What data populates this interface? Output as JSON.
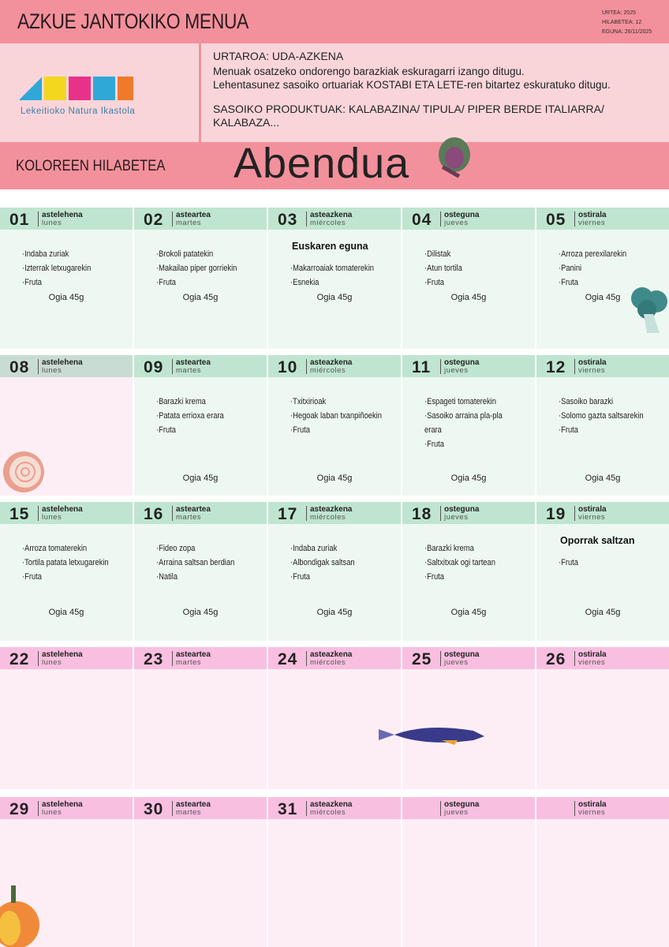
{
  "header": {
    "title": "AZKUE JANTOKIKO MENUA",
    "meta": [
      "URTEA: 2025",
      "HILABETEA: 12",
      "EGUNA: 26/11/2025"
    ]
  },
  "logo": {
    "text": "AZKUE",
    "subtitle": "Lekeitioko Natura Ikastola",
    "colors": [
      "#2fa8d8",
      "#f3d61e",
      "#e8328a",
      "#2fa8d8",
      "#f07a2b"
    ]
  },
  "info": {
    "season": "URTAROA:  UDA-AZKENA",
    "line1": "Menuak osatzeko ondorengo barazkiak eskuragarri izango ditugu.",
    "line2": "Lehentasunez sasoiko ortuariak KOSTABI ETA LETE-ren bitartez eskuratuko ditugu.",
    "products1": "SASOIKO PRODUKTUAK: KALABAZINA/ TIPULA/ PIPER BERDE ITALIARRA/",
    "products2": "KALABAZA..."
  },
  "banner": {
    "left": "KOLOREEN HILABETEA",
    "month": "Abendua"
  },
  "colors": {
    "pink": "#f2919c",
    "green_header": "#bfe5d0",
    "green_body": "#eef8f2",
    "pink_header": "#f9bfe0",
    "pink_body": "#fdeef6"
  },
  "weeks": [
    [
      {
        "n": "01",
        "eu": "astelehena",
        "es": "lunes",
        "items": [
          "·Indaba zuriak",
          "·Izterrak letxugarekin",
          "·Fruta"
        ],
        "ogia": "Ogia 45g"
      },
      {
        "n": "02",
        "eu": "asteartea",
        "es": "martes",
        "items": [
          "·Brokoli patatekin",
          "·Makailao piper gorriekin",
          "·Fruta"
        ],
        "ogia": "Ogia 45g"
      },
      {
        "n": "03",
        "eu": "asteazkena",
        "es": "miércoles",
        "special": "Euskaren eguna",
        "items": [
          "·Makarroaiak tomaterekin",
          "·Esnekia"
        ],
        "ogia": "Ogia 45g"
      },
      {
        "n": "04",
        "eu": "osteguna",
        "es": "jueves",
        "items": [
          "·Dilistak",
          "·Atun tortila",
          "·Fruta"
        ],
        "ogia": "Ogia 45g"
      },
      {
        "n": "05",
        "eu": "ostirala",
        "es": "viernes",
        "items": [
          "·Arroza perexilarekin",
          "·Panini",
          "·Fruta"
        ],
        "ogia": "Ogia 45g"
      }
    ],
    [
      {
        "n": "08",
        "eu": "astelehena",
        "es": "lunes",
        "items": [],
        "holiday": true
      },
      {
        "n": "09",
        "eu": "asteartea",
        "es": "martes",
        "items": [
          "·Barazki krema",
          "·Patata errioxa erara",
          "·Fruta"
        ],
        "ogia": "Ogia 45g"
      },
      {
        "n": "10",
        "eu": "asteazkena",
        "es": "miércoles",
        "items": [
          "·Txitxirioak",
          "·Hegoak laban txanpiñoekin",
          "·Fruta"
        ],
        "ogia": "Ogia 45g"
      },
      {
        "n": "11",
        "eu": "osteguna",
        "es": "jueves",
        "items": [
          "·Espageti tomaterekin",
          "·Sasoiko arraina pla-pla",
          "erara",
          "·Fruta"
        ],
        "ogia": "Ogia 45g"
      },
      {
        "n": "12",
        "eu": "ostirala",
        "es": "viernes",
        "items": [
          "·Sasoiko barazki",
          "·Solomo gazta saltsarekin",
          "·Fruta"
        ],
        "ogia": "Ogia 45g"
      }
    ],
    [
      {
        "n": "15",
        "eu": "astelehena",
        "es": "lunes",
        "items": [
          "·Arroza tomaterekin",
          "·Tortila patata letxugarekin",
          "·Fruta"
        ],
        "ogia": "Ogia 45g"
      },
      {
        "n": "16",
        "eu": "asteartea",
        "es": "martes",
        "items": [
          "·Fideo zopa",
          "·Arraina saltsan berdian",
          "·Natila"
        ],
        "ogia": "Ogia 45g"
      },
      {
        "n": "17",
        "eu": "asteazkena",
        "es": "miércoles",
        "items": [
          "·Indaba zuriak",
          "·Albondigak saltsan",
          "·Fruta"
        ],
        "ogia": "Ogia 45g"
      },
      {
        "n": "18",
        "eu": "osteguna",
        "es": "jueves",
        "items": [
          "·Barazki krema",
          "·Saltxitxak ogi tartean",
          "·Fruta"
        ],
        "ogia": "Ogia 45g"
      },
      {
        "n": "19",
        "eu": "ostirala",
        "es": "viernes",
        "special": "Oporrak saltzan",
        "items": [
          "·Fruta"
        ],
        "ogia": "Ogia 45g"
      }
    ],
    [
      {
        "n": "22",
        "eu": "astelehena",
        "es": "lunes",
        "items": []
      },
      {
        "n": "23",
        "eu": "asteartea",
        "es": "martes",
        "items": []
      },
      {
        "n": "24",
        "eu": "asteazkena",
        "es": "miércoles",
        "items": []
      },
      {
        "n": "25",
        "eu": "osteguna",
        "es": "jueves",
        "items": []
      },
      {
        "n": "26",
        "eu": "ostirala",
        "es": "viernes",
        "items": []
      }
    ],
    [
      {
        "n": "29",
        "eu": "astelehena",
        "es": "lunes",
        "items": []
      },
      {
        "n": "30",
        "eu": "asteartea",
        "es": "martes",
        "items": []
      },
      {
        "n": "31",
        "eu": "asteazkena",
        "es": "miércoles",
        "items": []
      },
      {
        "n": "",
        "eu": "osteguna",
        "es": "jueves",
        "items": []
      },
      {
        "n": "",
        "eu": "ostirala",
        "es": "viernes",
        "items": []
      }
    ]
  ]
}
